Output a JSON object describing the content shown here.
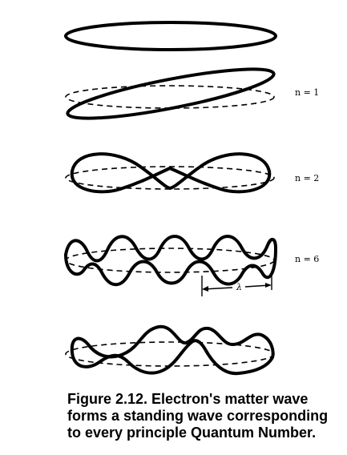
{
  "labels": {
    "n1": "n = 1",
    "n2": "n = 2",
    "n6": "n = 6",
    "lambda": "λ"
  },
  "caption": "Figure 2.12. Electron's matter wave forms a standing wave corresponding to every principle Quantum Number."
}
